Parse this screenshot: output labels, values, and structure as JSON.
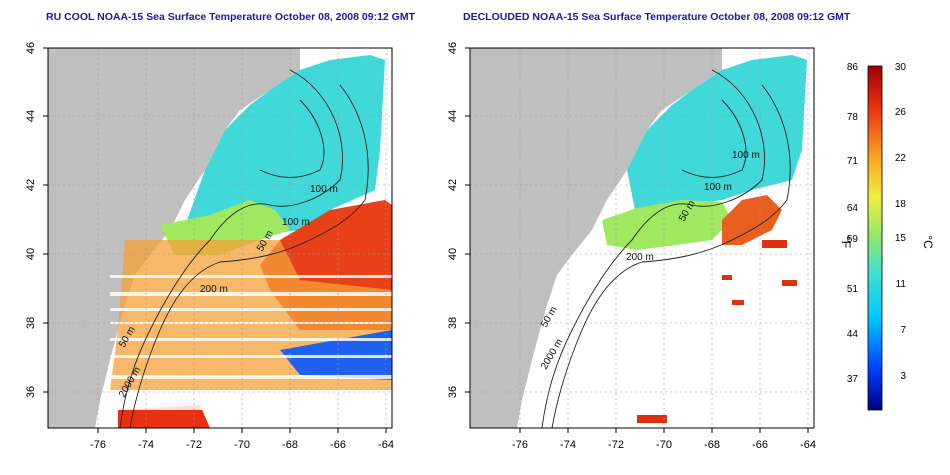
{
  "panels": [
    {
      "title": "RU COOL NOAA-15 Sea Surface Temperature October 08, 2008 09:12 GMT",
      "contours": [
        "100 m",
        "100 m",
        "50 m",
        "200 m",
        "50 m",
        "2000 m"
      ]
    },
    {
      "title": "DECLOUDED NOAA-15 Sea Surface Temperature October 08, 2008 09:12 GMT",
      "contours": [
        "100 m",
        "100 m",
        "50 m",
        "200 m",
        "50 m",
        "2000 m"
      ]
    }
  ],
  "axes": {
    "lon_ticks": [
      "-76",
      "-74",
      "-72",
      "-70",
      "-68",
      "-66",
      "-64"
    ],
    "lat_ticks": [
      "46",
      "44",
      "42",
      "40",
      "38",
      "36"
    ]
  },
  "colorbar": {
    "unit_f": "°F",
    "unit_c": "°C",
    "f_ticks": [
      "86",
      "78",
      "71",
      "64",
      "59",
      "51",
      "44",
      "37"
    ],
    "c_ticks": [
      "30",
      "26",
      "22",
      "18",
      "15",
      "11",
      "7",
      "3"
    ]
  },
  "colors": {
    "land": "#bfbfbf",
    "title": "#1a1aa6",
    "scale": [
      "#000080",
      "#0040ff",
      "#00c8ff",
      "#40e0d0",
      "#a0e860",
      "#f0f040",
      "#f8a020",
      "#e83010",
      "#a00000"
    ]
  }
}
